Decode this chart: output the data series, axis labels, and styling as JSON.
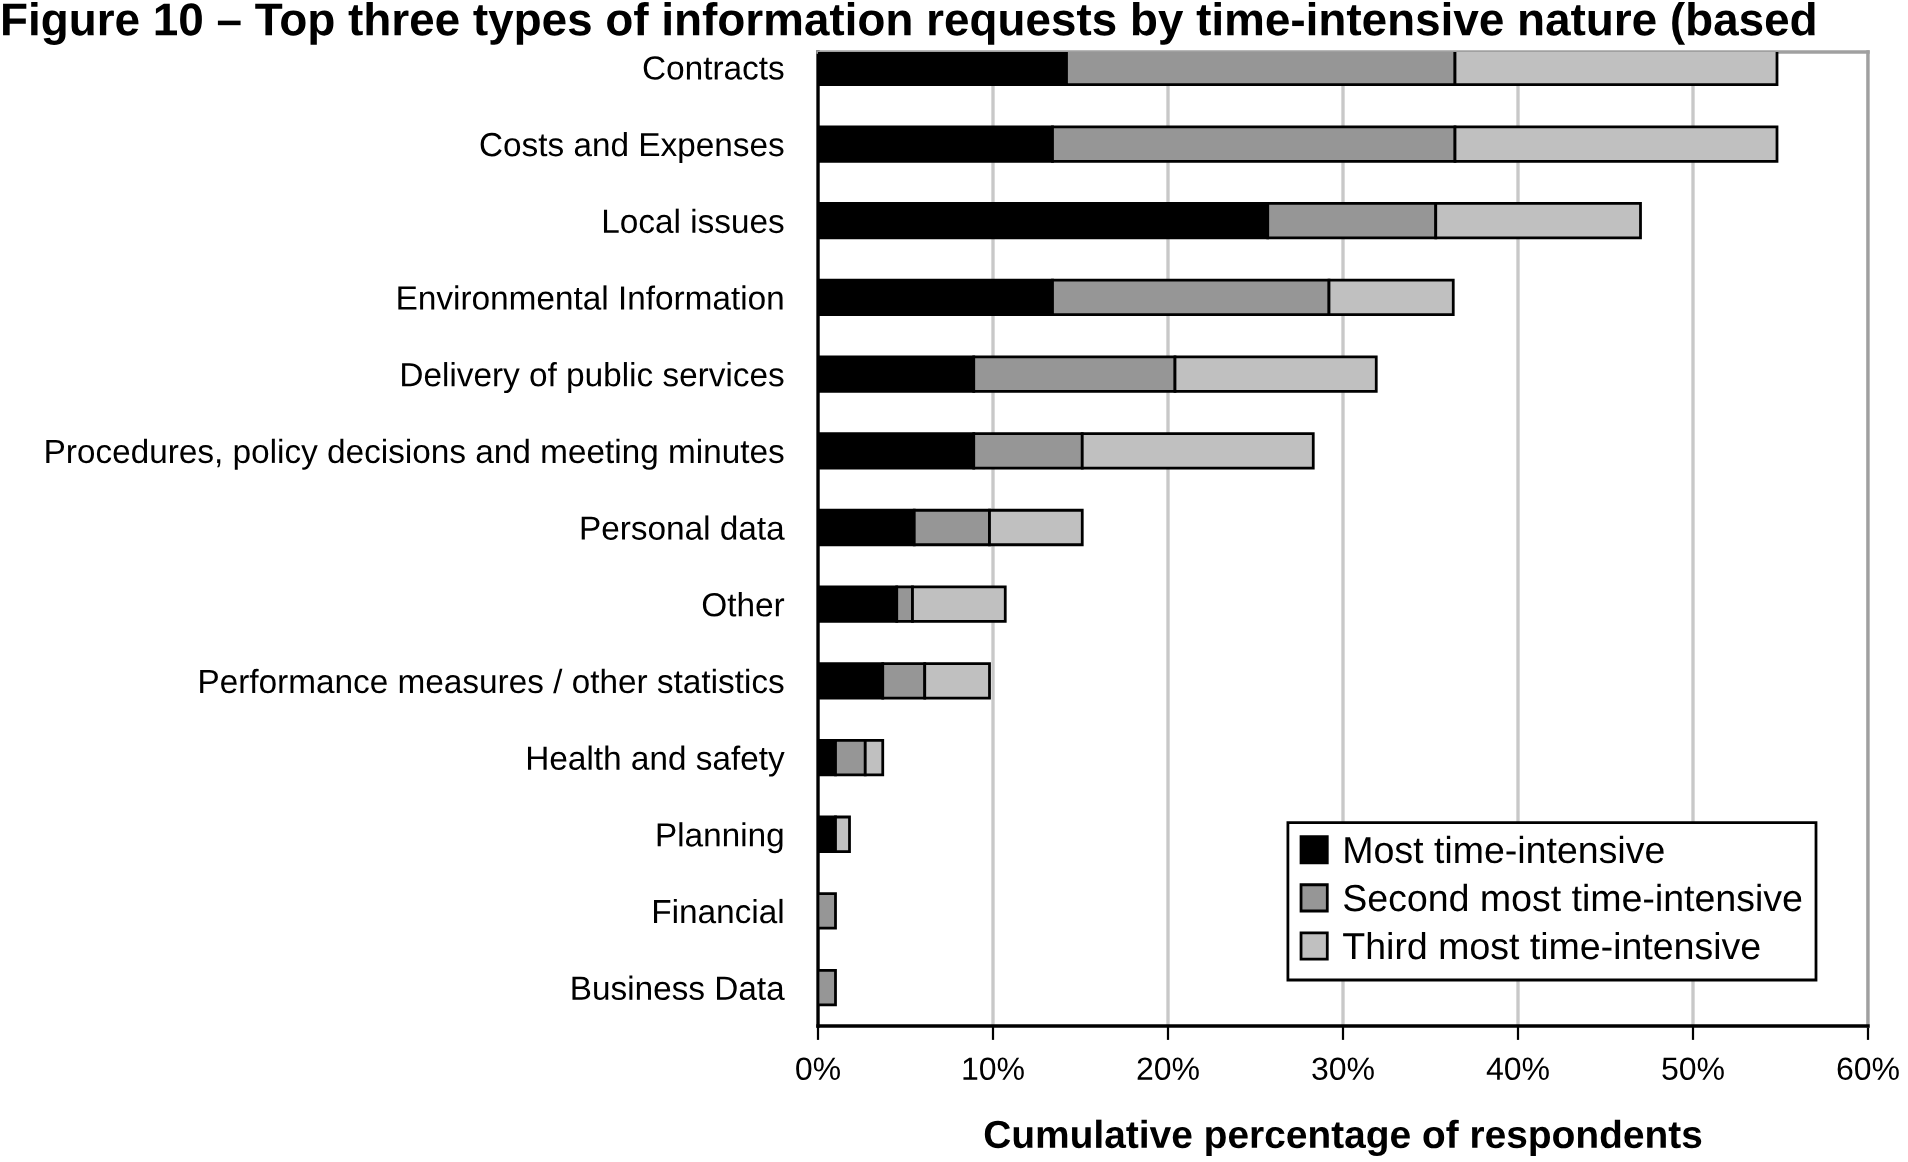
{
  "chart_data": {
    "type": "bar",
    "orientation": "horizontal",
    "stacked": true,
    "title": "Figure 10 – Top three types of information requests by time-intensive nature (based",
    "xlabel": "Cumulative percentage of respondents",
    "categories": [
      "Contracts",
      "Costs and Expenses",
      "Local issues",
      "Environmental Information",
      "Delivery of public services",
      "Procedures, policy decisions and meeting minutes",
      "Personal data",
      "Other",
      "Performance measures / other statistics",
      "Health and safety",
      "Planning",
      "Financial",
      "Business Data"
    ],
    "series": [
      {
        "name": "Most time-intensive",
        "color": "#000000",
        "values": [
          14.2,
          13.4,
          25.7,
          13.4,
          8.9,
          8.9,
          5.5,
          4.5,
          3.7,
          1.0,
          1.0,
          0,
          0
        ]
      },
      {
        "name": "Second most time-intensive",
        "color": "#969696",
        "values": [
          22.2,
          23.0,
          9.6,
          15.8,
          11.5,
          6.2,
          4.3,
          0.9,
          2.4,
          1.7,
          0,
          1.0,
          1.0
        ]
      },
      {
        "name": "Third most time-intensive",
        "color": "#c0c0c0",
        "values": [
          18.4,
          18.4,
          11.7,
          7.1,
          11.5,
          13.2,
          5.3,
          5.3,
          3.7,
          1.0,
          0.8,
          0,
          0
        ]
      }
    ],
    "xlim": [
      0,
      60
    ],
    "xticks": [
      {
        "value": 0,
        "label": "0%"
      },
      {
        "value": 10,
        "label": "10%"
      },
      {
        "value": 20,
        "label": "20%"
      },
      {
        "value": 30,
        "label": "30%"
      },
      {
        "value": 40,
        "label": "40%"
      },
      {
        "value": 50,
        "label": "50%"
      },
      {
        "value": 60,
        "label": "60%"
      }
    ],
    "grid": "x",
    "legend": "bottom right"
  }
}
